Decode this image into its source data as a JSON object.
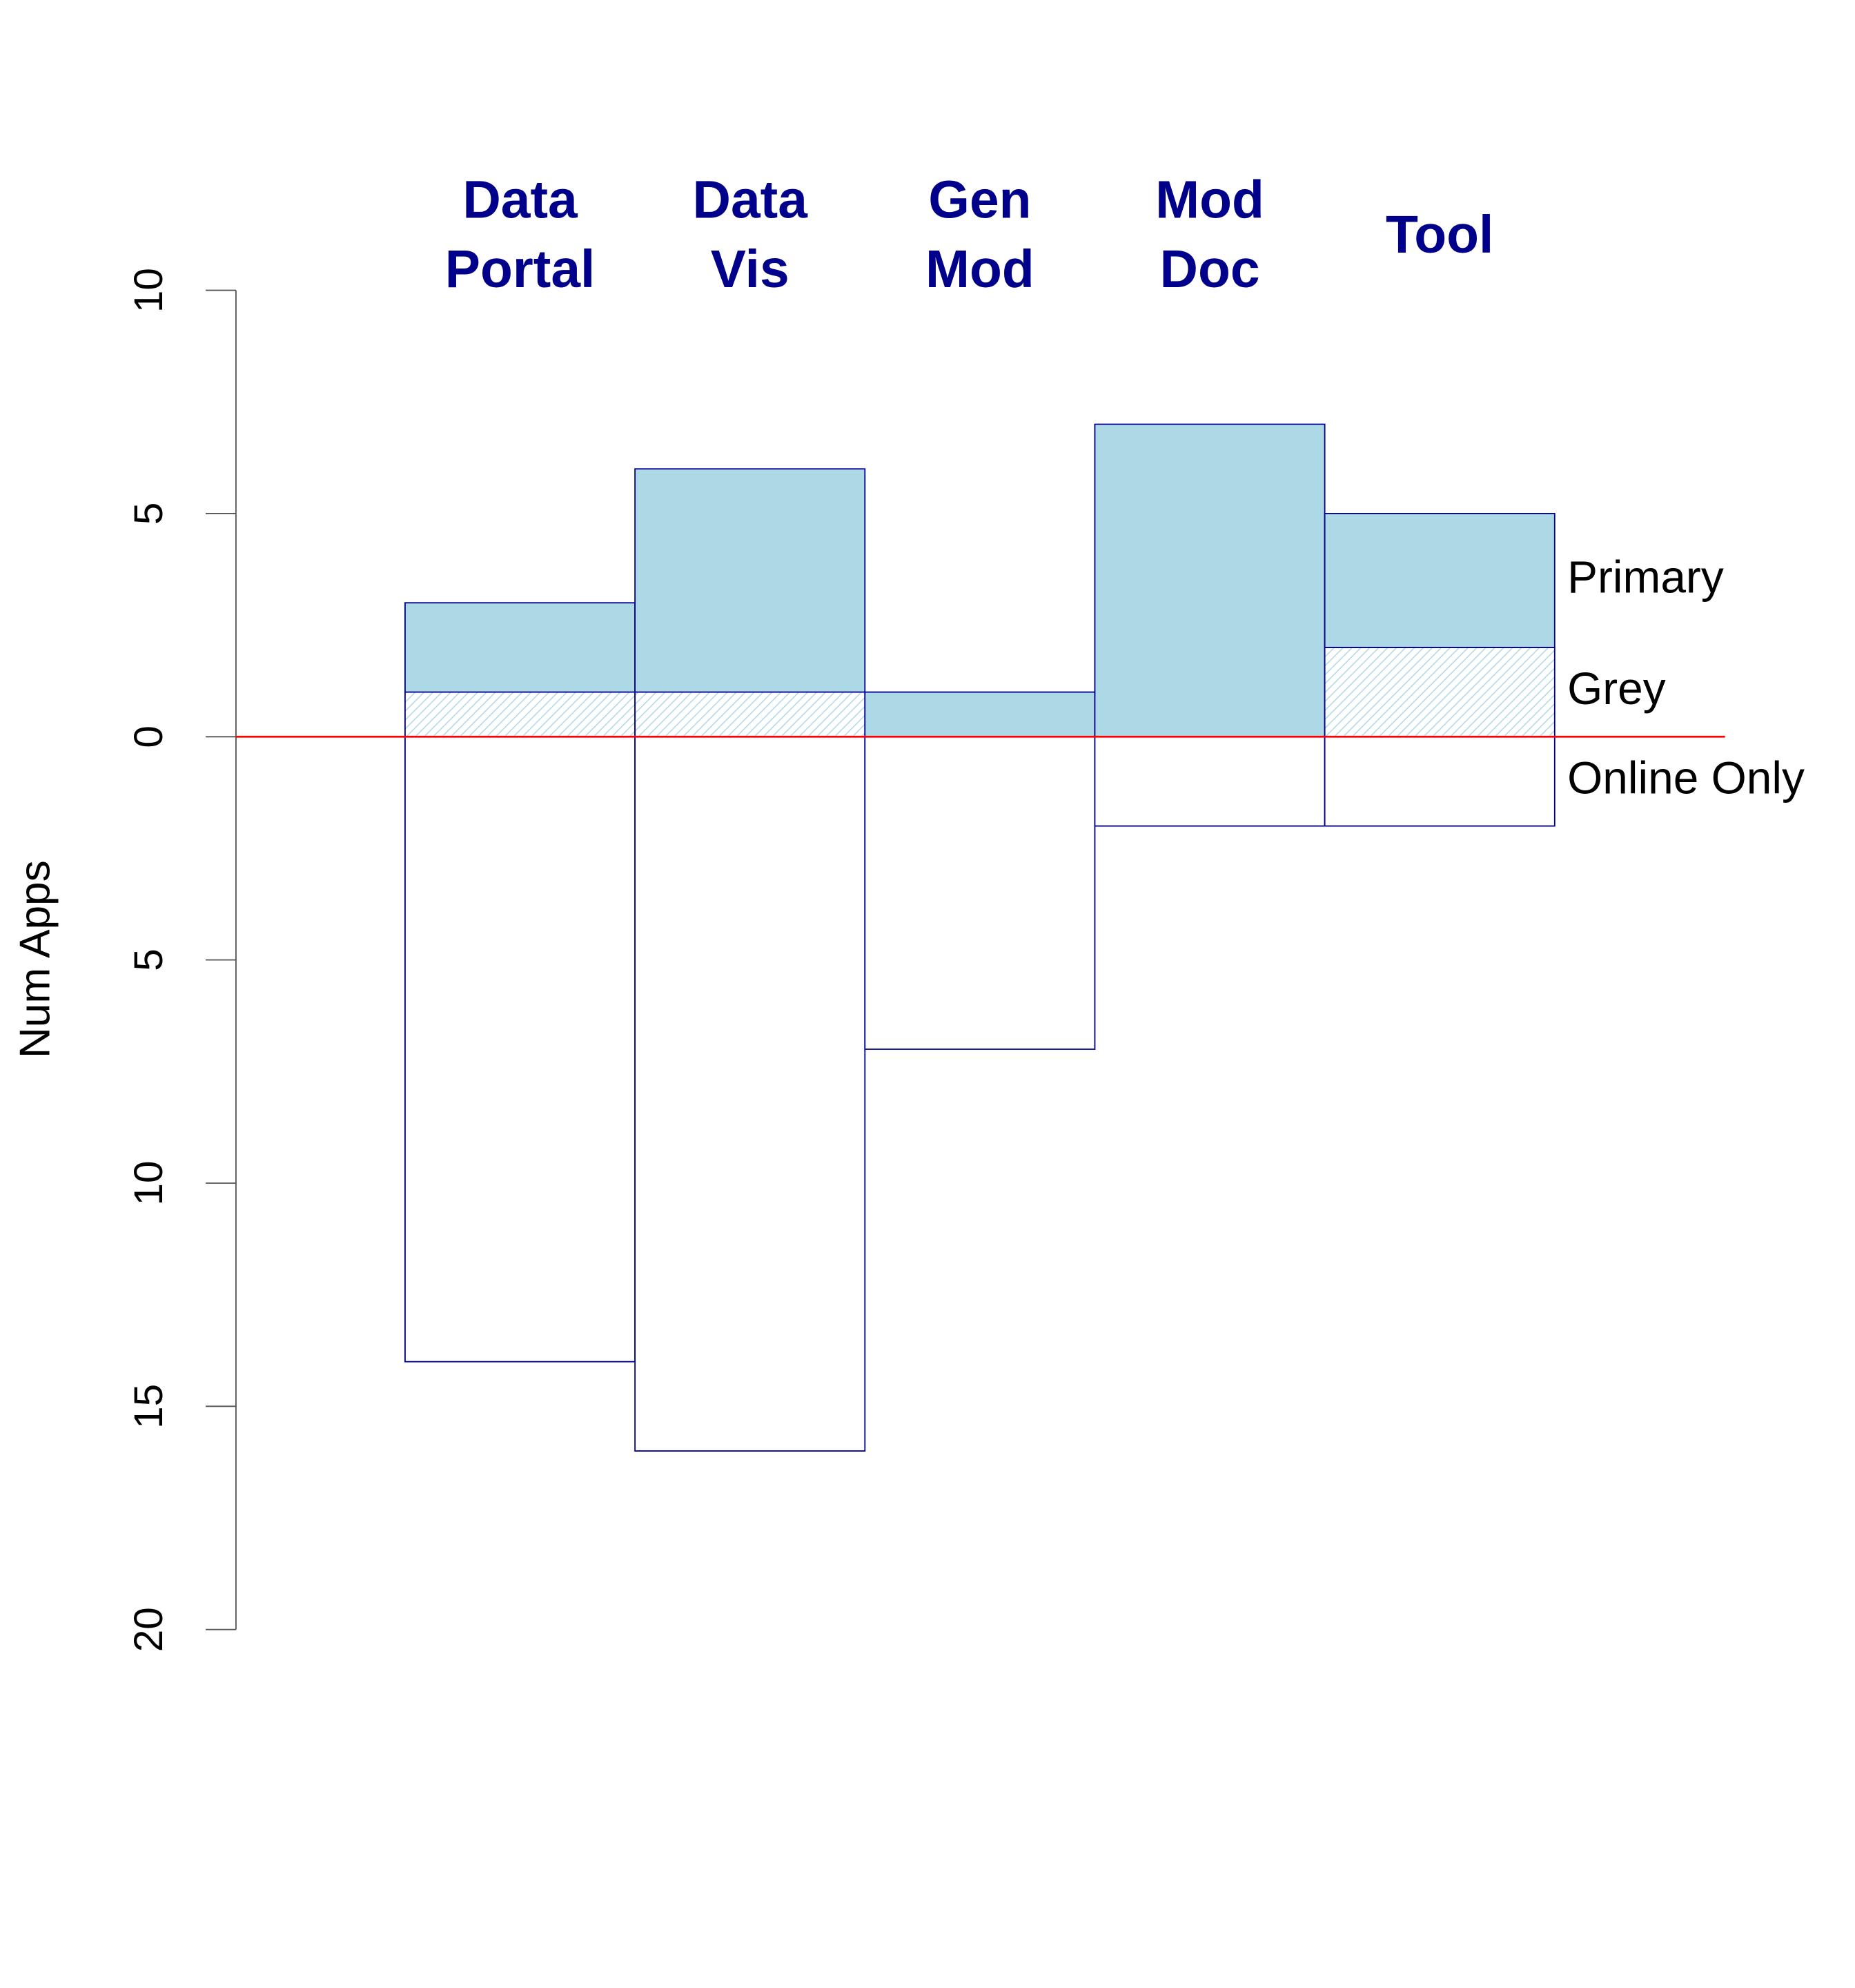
{
  "chart_data": {
    "type": "bar",
    "y_label": "Num Apps",
    "categories": [
      [
        "Data",
        "Portal"
      ],
      [
        "Data",
        "Vis"
      ],
      [
        "Gen",
        "Mod"
      ],
      [
        "Mod",
        "Doc"
      ],
      [
        "Tool"
      ]
    ],
    "series": [
      {
        "name": "Grey",
        "color": "#add8e6",
        "pattern": "hatch",
        "values": [
          1,
          1,
          0,
          0,
          2
        ]
      },
      {
        "name": "Primary",
        "color": "#add8e6",
        "values": [
          2,
          5,
          1,
          7,
          3
        ]
      },
      {
        "name": "Online Only",
        "color": "#ffffff",
        "values": [
          -14,
          -16,
          -7,
          -2,
          -2
        ]
      }
    ],
    "stacked": true,
    "ylim": [
      -20,
      10
    ],
    "yticks": [
      10,
      5,
      0,
      {
        "value": -5,
        "label": "5"
      },
      {
        "value": -10,
        "label": "10"
      },
      {
        "value": -15,
        "label": "15"
      },
      {
        "value": -20,
        "label": "20"
      }
    ],
    "border_color": "#00008b",
    "category_color": "#00008b",
    "zero_line_color": "#ff0000"
  }
}
